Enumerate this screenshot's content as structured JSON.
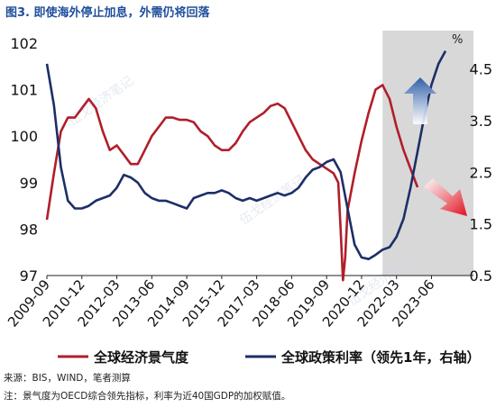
{
  "header": {
    "title": "图3. 即使海外停止加息，外需仍将回落"
  },
  "notes": {
    "source": "来源：BIS，WIND，笔者测算",
    "note": "注：景气度为OECD综合领先指标，利率为近40国GDP的加权赋值。"
  },
  "chart_data": {
    "type": "line",
    "title": "图3. 即使海外停止加息，外需仍将回落",
    "x_ticks": [
      "2009-09",
      "2010-12",
      "2012-03",
      "2013-06",
      "2014-09",
      "2015-12",
      "2017-03",
      "2018-06",
      "2019-09",
      "2020-12",
      "2022-03",
      "2023-06"
    ],
    "x_range": [
      "2009-09",
      "2024-12"
    ],
    "y_left": {
      "range": [
        97,
        102
      ],
      "ticks": [
        "97",
        "98",
        "99",
        "100",
        "101",
        "102"
      ]
    },
    "y_right": {
      "range": [
        0.5,
        5.0
      ],
      "ticks": [
        "0.5",
        "1.5",
        "2.5",
        "3.5",
        "4.5"
      ],
      "unit": "%"
    },
    "shaded_region": [
      "2021-09",
      "2024-12"
    ],
    "series": [
      {
        "name": "全球经济景气度",
        "axis": "left",
        "color": "#b01e2a",
        "points": [
          [
            "2009-09",
            98.2
          ],
          [
            "2009-12",
            99.2
          ],
          [
            "2010-03",
            100.1
          ],
          [
            "2010-06",
            100.4
          ],
          [
            "2010-09",
            100.4
          ],
          [
            "2010-12",
            100.6
          ],
          [
            "2011-03",
            100.8
          ],
          [
            "2011-06",
            100.6
          ],
          [
            "2011-09",
            100.1
          ],
          [
            "2011-12",
            99.7
          ],
          [
            "2012-03",
            99.8
          ],
          [
            "2012-06",
            99.6
          ],
          [
            "2012-09",
            99.4
          ],
          [
            "2012-12",
            99.4
          ],
          [
            "2013-03",
            99.7
          ],
          [
            "2013-06",
            100.0
          ],
          [
            "2013-09",
            100.2
          ],
          [
            "2013-12",
            100.4
          ],
          [
            "2014-03",
            100.4
          ],
          [
            "2014-06",
            100.35
          ],
          [
            "2014-09",
            100.35
          ],
          [
            "2014-12",
            100.3
          ],
          [
            "2015-03",
            100.1
          ],
          [
            "2015-06",
            100.0
          ],
          [
            "2015-09",
            99.8
          ],
          [
            "2015-12",
            99.7
          ],
          [
            "2016-03",
            99.7
          ],
          [
            "2016-06",
            99.85
          ],
          [
            "2016-09",
            100.1
          ],
          [
            "2016-12",
            100.3
          ],
          [
            "2017-03",
            100.4
          ],
          [
            "2017-06",
            100.5
          ],
          [
            "2017-09",
            100.65
          ],
          [
            "2017-12",
            100.7
          ],
          [
            "2018-03",
            100.6
          ],
          [
            "2018-06",
            100.3
          ],
          [
            "2018-09",
            100.0
          ],
          [
            "2018-12",
            99.7
          ],
          [
            "2019-03",
            99.5
          ],
          [
            "2019-06",
            99.4
          ],
          [
            "2019-09",
            99.3
          ],
          [
            "2019-12",
            99.2
          ],
          [
            "2020-02",
            99.0
          ],
          [
            "2020-03",
            98.0
          ],
          [
            "2020-04",
            96.9
          ],
          [
            "2020-05",
            97.4
          ],
          [
            "2020-06",
            98.4
          ],
          [
            "2020-09",
            99.2
          ],
          [
            "2020-12",
            99.9
          ],
          [
            "2021-03",
            100.5
          ],
          [
            "2021-06",
            101.0
          ],
          [
            "2021-09",
            101.1
          ],
          [
            "2021-12",
            100.8
          ],
          [
            "2022-03",
            100.2
          ],
          [
            "2022-06",
            99.7
          ],
          [
            "2022-09",
            99.3
          ],
          [
            "2022-12",
            98.9
          ]
        ]
      },
      {
        "name": "全球政策利率（领先1年，右轴）",
        "axis": "right",
        "color": "#1c2f66",
        "points": [
          [
            "2009-09",
            4.6
          ],
          [
            "2009-12",
            3.8
          ],
          [
            "2010-03",
            2.6
          ],
          [
            "2010-06",
            1.95
          ],
          [
            "2010-09",
            1.8
          ],
          [
            "2010-12",
            1.8
          ],
          [
            "2011-03",
            1.85
          ],
          [
            "2011-06",
            1.95
          ],
          [
            "2011-09",
            2.0
          ],
          [
            "2011-12",
            2.05
          ],
          [
            "2012-03",
            2.2
          ],
          [
            "2012-06",
            2.45
          ],
          [
            "2012-09",
            2.4
          ],
          [
            "2012-12",
            2.3
          ],
          [
            "2013-03",
            2.1
          ],
          [
            "2013-06",
            2.0
          ],
          [
            "2013-09",
            1.95
          ],
          [
            "2013-12",
            1.95
          ],
          [
            "2014-03",
            1.9
          ],
          [
            "2014-06",
            1.85
          ],
          [
            "2014-09",
            1.8
          ],
          [
            "2014-12",
            2.0
          ],
          [
            "2015-03",
            2.05
          ],
          [
            "2015-06",
            2.1
          ],
          [
            "2015-09",
            2.1
          ],
          [
            "2015-12",
            2.15
          ],
          [
            "2016-03",
            2.1
          ],
          [
            "2016-06",
            2.0
          ],
          [
            "2016-09",
            1.95
          ],
          [
            "2016-12",
            2.0
          ],
          [
            "2017-03",
            1.95
          ],
          [
            "2017-06",
            2.0
          ],
          [
            "2017-09",
            2.05
          ],
          [
            "2017-12",
            2.1
          ],
          [
            "2018-03",
            2.05
          ],
          [
            "2018-06",
            2.1
          ],
          [
            "2018-09",
            2.2
          ],
          [
            "2018-12",
            2.4
          ],
          [
            "2019-03",
            2.55
          ],
          [
            "2019-06",
            2.6
          ],
          [
            "2019-09",
            2.7
          ],
          [
            "2019-12",
            2.75
          ],
          [
            "2020-03",
            2.5
          ],
          [
            "2020-06",
            1.8
          ],
          [
            "2020-09",
            1.1
          ],
          [
            "2020-12",
            0.85
          ],
          [
            "2021-03",
            0.82
          ],
          [
            "2021-06",
            0.9
          ],
          [
            "2021-09",
            1.0
          ],
          [
            "2021-12",
            1.05
          ],
          [
            "2022-03",
            1.25
          ],
          [
            "2022-06",
            1.6
          ],
          [
            "2022-09",
            2.2
          ],
          [
            "2022-12",
            2.9
          ],
          [
            "2023-03",
            3.6
          ],
          [
            "2023-06",
            4.2
          ],
          [
            "2023-09",
            4.6
          ],
          [
            "2023-12",
            4.85
          ]
        ]
      }
    ],
    "legend": {
      "placement": "bottom"
    },
    "grid": false,
    "watermark": "伍戈经济笔记"
  }
}
